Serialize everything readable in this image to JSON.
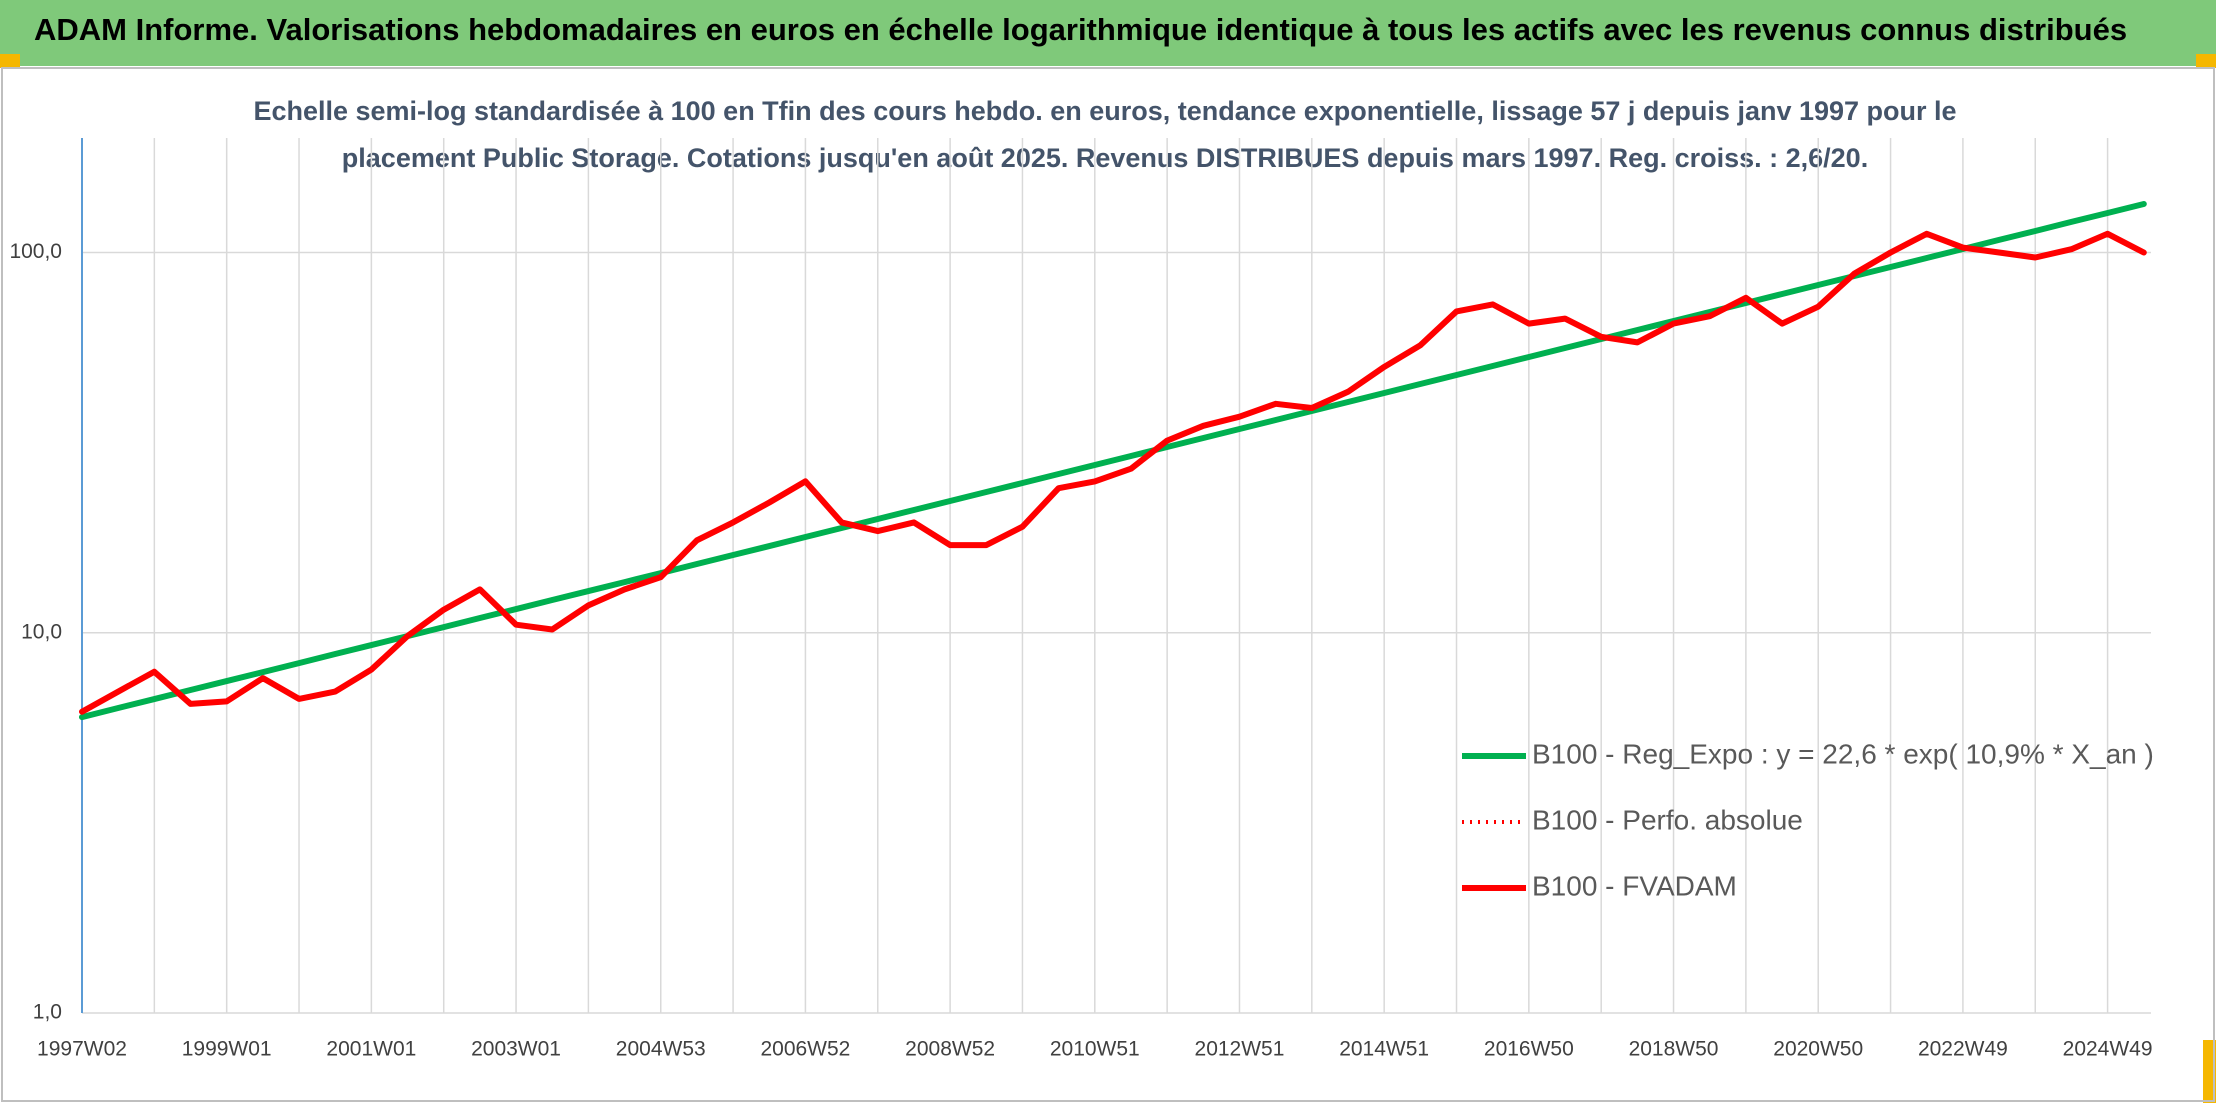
{
  "header": {
    "title": "ADAM Informe. Valorisations hebdomadaires en euros en échelle logarithmique identique à tous les actifs avec les revenus connus distribués"
  },
  "chart_data": {
    "type": "line",
    "subtitle": [
      "Echelle semi-log standardisée à 100 en Tfin des cours hebdo. en euros, tendance exponentielle, lissage 57 j depuis janv 1997 pour le",
      "placement Public Storage. Cotations jusqu'en août 2025. Revenus DISTRIBUES depuis mars 1997. Reg. croiss. : 2,6/20."
    ],
    "categories": [
      "1997W02",
      null,
      null,
      null,
      "1999W01",
      null,
      null,
      null,
      "2001W01",
      null,
      null,
      null,
      "2003W01",
      null,
      null,
      null,
      "2004W53",
      null,
      null,
      null,
      "2006W52",
      null,
      null,
      null,
      "2008W52",
      null,
      null,
      null,
      "2010W51",
      null,
      null,
      null,
      "2012W51",
      null,
      null,
      null,
      "2014W51",
      null,
      null,
      null,
      "2016W50",
      null,
      null,
      null,
      "2018W50",
      null,
      null,
      null,
      "2020W50",
      null,
      null,
      null,
      "2022W49",
      null,
      null,
      null,
      "2024W49",
      null
    ],
    "series": [
      {
        "name": "B100 - Reg_Expo : y = 22,6 * exp( 10,9% *  X_an )",
        "color": "#00b050",
        "style": "solid",
        "values": [
          6.0,
          6.34,
          6.69,
          7.07,
          7.46,
          7.88,
          8.32,
          8.79,
          9.28,
          9.8,
          10.35,
          10.93,
          11.54,
          12.19,
          12.87,
          13.59,
          14.35,
          15.16,
          16.01,
          16.9,
          17.85,
          18.85,
          19.91,
          21.02,
          22.2,
          23.45,
          24.76,
          26.15,
          27.61,
          29.16,
          30.79,
          32.52,
          34.34,
          36.26,
          38.29,
          40.44,
          42.7,
          45.1,
          47.62,
          50.29,
          53.11,
          56.08,
          59.23,
          62.54,
          66.05,
          69.75,
          73.65,
          77.78,
          82.14,
          86.74,
          91.59,
          96.72,
          102.1,
          107.9,
          113.9,
          120.3,
          127.0,
          134.1
        ]
      },
      {
        "name": "B100 - Perfo. absolue",
        "color": "#ff0000",
        "style": "dotted",
        "values": [
          6.2,
          7.0,
          7.9,
          6.5,
          6.6,
          7.6,
          6.7,
          7.0,
          8.0,
          9.8,
          11.5,
          13.0,
          10.5,
          10.2,
          11.8,
          13.0,
          14.0,
          17.5,
          19.5,
          22,
          25,
          19.5,
          18.5,
          19.5,
          17,
          17,
          19,
          24,
          25,
          27,
          32,
          35,
          37,
          40,
          39,
          43,
          50,
          57,
          70,
          73,
          65,
          67,
          60,
          58,
          65,
          68,
          76,
          65,
          72,
          88,
          100,
          112,
          103,
          100,
          97,
          102,
          112,
          100
        ]
      },
      {
        "name": "B100 - FVADAM",
        "color": "#ff0000",
        "style": "solid",
        "values": [
          6.2,
          7.0,
          7.9,
          6.5,
          6.6,
          7.6,
          6.7,
          7.0,
          8.0,
          9.8,
          11.5,
          13.0,
          10.5,
          10.2,
          11.8,
          13.0,
          14.0,
          17.5,
          19.5,
          22,
          25,
          19.5,
          18.5,
          19.5,
          17,
          17,
          19,
          24,
          25,
          27,
          32,
          35,
          37,
          40,
          39,
          43,
          50,
          57,
          70,
          73,
          65,
          67,
          60,
          58,
          65,
          68,
          76,
          65,
          72,
          88,
          100,
          112,
          103,
          100,
          97,
          102,
          112,
          100
        ]
      }
    ],
    "ylim": [
      1,
      200
    ],
    "yscale": "log",
    "yticks": [
      {
        "value": 1,
        "label": "1,0"
      },
      {
        "value": 10,
        "label": "10,0"
      },
      {
        "value": 100,
        "label": "100,0"
      }
    ],
    "grid": true,
    "legend": "lower right"
  }
}
